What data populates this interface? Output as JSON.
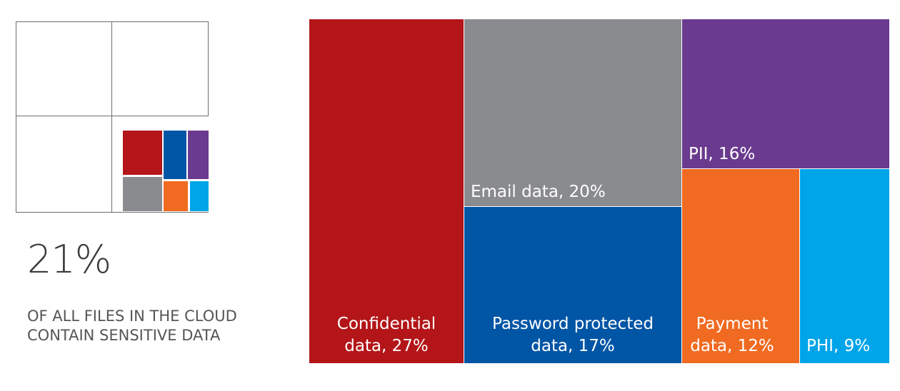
{
  "stat": {
    "value": "21%",
    "line1": "OF ALL FILES IN THE CLOUD",
    "line2": "CONTAIN SENSITIVE DATA"
  },
  "labels": {
    "confidential_1": "Confidential",
    "confidential_2": "data, 27%",
    "email": "Email data, 20%",
    "password_1": "Password protected",
    "password_2": "data, 17%",
    "pii": "PII, 16%",
    "payment_1": "Payment",
    "payment_2": "data, 12%",
    "phi": "PHI, 9%"
  },
  "chart_data": {
    "type": "treemap",
    "title": "",
    "items": [
      {
        "label": "Confidential data",
        "value": 27,
        "color": "#b31518"
      },
      {
        "label": "Email data",
        "value": 20,
        "color": "#8a8b8e"
      },
      {
        "label": "Password protected data",
        "value": 17,
        "color": "#0055a5"
      },
      {
        "label": "PII",
        "value": 16,
        "color": "#6a3a8f"
      },
      {
        "label": "Payment data",
        "value": 12,
        "color": "#f06a21"
      },
      {
        "label": "PHI",
        "value": 9,
        "color": "#00a4e8"
      }
    ]
  }
}
